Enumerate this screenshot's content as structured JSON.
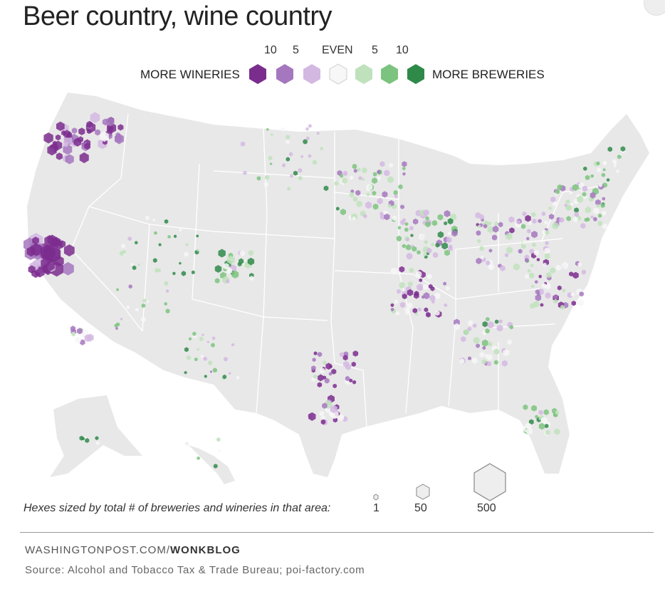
{
  "title": "Beer country, wine country",
  "legend": {
    "left_label": "MORE WINERIES",
    "right_label": "MORE BREWERIES",
    "scale": [
      {
        "label": "10",
        "color": "#7b2d8e"
      },
      {
        "label": "5",
        "color": "#a577be"
      },
      {
        "label": "",
        "color": "#d3b8e2"
      },
      {
        "label": "EVEN",
        "color": "#f7f7f7"
      },
      {
        "label": "",
        "color": "#bfe2bc"
      },
      {
        "label": "5",
        "color": "#7cc37f"
      },
      {
        "label": "10",
        "color": "#2f8a4a"
      }
    ]
  },
  "size_legend": {
    "caption": "Hexes sized by total # of breweries and wineries in that area:",
    "values": [
      "1",
      "50",
      "500"
    ]
  },
  "footer": {
    "site": "WASHINGTONPOST.COM/",
    "section": "WONKBLOG",
    "source": "Source: Alcohol and Tobacco Tax & Trade Bureau; poi-factory.com"
  },
  "colors": {
    "land": "#e8e8e8",
    "state_border": "#ffffff",
    "wine_strong": "#7b2d8e",
    "beer_strong": "#2f8a4a"
  }
}
